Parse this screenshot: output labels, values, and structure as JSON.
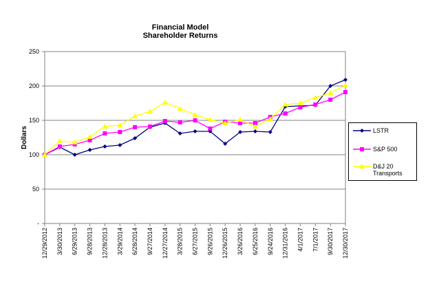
{
  "chart_data": {
    "type": "line",
    "title": "Financial Model",
    "subtitle": "Shareholder Returns",
    "xlabel": "",
    "ylabel": "Dollars",
    "ylim": [
      0,
      250
    ],
    "yticks": [
      0,
      50,
      100,
      150,
      200,
      250
    ],
    "ytick_labels": [
      "-",
      "50",
      "100",
      "150",
      "200",
      "250"
    ],
    "grid": "horizontal",
    "legend_position": "right",
    "categories": [
      "12/29/2012",
      "3/30/2013",
      "6/29/2013",
      "9/28/2013",
      "12/28/2013",
      "3/29/2014",
      "6/28/2014",
      "9/27/2014",
      "12/27/2014",
      "3/28/2015",
      "6/27/2015",
      "9/26/2015",
      "12/26/2015",
      "3/26/2016",
      "6/25/2016",
      "9/24/2016",
      "12/31/2016",
      "4/1/2017",
      "7/1/2017",
      "9/30/2017",
      "12/30/2017"
    ],
    "series": [
      {
        "name": "LSTR",
        "color": "#000080",
        "marker": "diamond",
        "values": [
          100,
          111,
          100,
          107,
          112,
          114,
          124,
          140,
          146,
          131,
          134,
          134,
          116,
          133,
          134,
          133,
          170,
          171,
          172,
          200,
          209
        ]
      },
      {
        "name": "S&P 500",
        "color": "#ff00ff",
        "marker": "square",
        "values": [
          100,
          112,
          115,
          121,
          131,
          133,
          140,
          141,
          149,
          147,
          150,
          138,
          148,
          146,
          146,
          155,
          160,
          169,
          173,
          180,
          191
        ]
      },
      {
        "name": "D&J 20 Transports",
        "color": "#ffff00",
        "marker": "triangle",
        "values": [
          100,
          120,
          118,
          126,
          141,
          143,
          156,
          163,
          176,
          167,
          158,
          151,
          146,
          151,
          141,
          152,
          173,
          175,
          183,
          190,
          201
        ]
      }
    ]
  }
}
